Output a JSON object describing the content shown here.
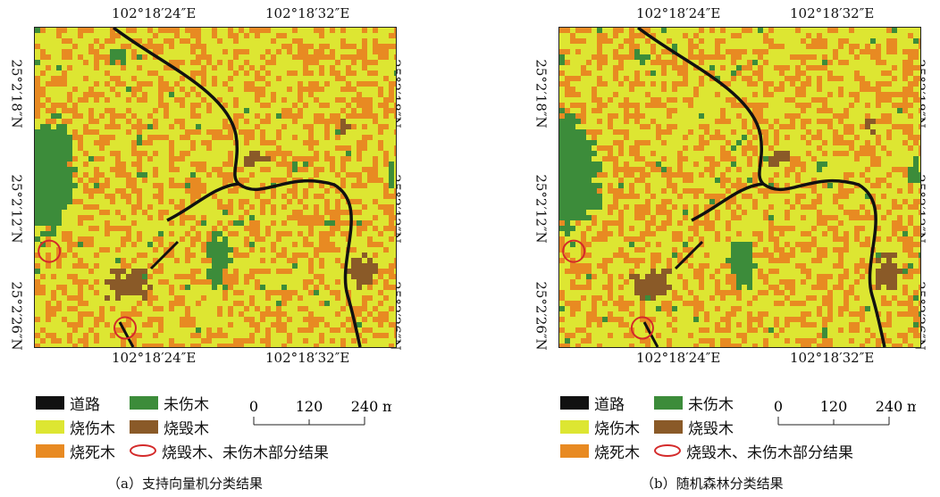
{
  "colors": {
    "road": "#111111",
    "unburned": "#3c8c3a",
    "scorched": "#dde632",
    "dead": "#e88a22",
    "destroyed": "#8a5a28",
    "circle": "#d42a2a"
  },
  "coords": {
    "lon_left": "102°18′24″E",
    "lon_right": "102°18′32″E",
    "lat_top": "25°2′18″N",
    "lat_mid": "25°2′12″N",
    "lat_bottom": "25°2′26″N"
  },
  "legend": {
    "road": "道路",
    "unburned": "未伤木",
    "scorched": "烧伤木",
    "destroyed": "烧毁木",
    "dead": "烧死木",
    "partial": "烧毁木、未伤木部分结果"
  },
  "scale": {
    "ticks": [
      "0",
      "120",
      "240"
    ],
    "unit": "m"
  },
  "panels": [
    {
      "caption": "（a）支持向量机分类结果",
      "circles": [
        [
          0.04,
          0.7
        ],
        [
          0.25,
          0.94
        ]
      ]
    },
    {
      "caption": "（b）随机森林分类结果",
      "circles": [
        [
          0.04,
          0.7
        ],
        [
          0.23,
          0.94
        ]
      ]
    }
  ]
}
